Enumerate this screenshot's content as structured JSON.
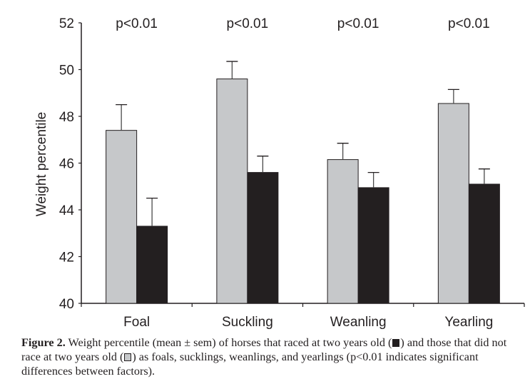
{
  "chart_data": {
    "type": "bar",
    "title": "",
    "xlabel": "",
    "ylabel": "Weight percentile",
    "ylim": [
      40,
      52
    ],
    "yticks": [
      40,
      42,
      44,
      46,
      48,
      50,
      52
    ],
    "categories": [
      "Foal",
      "Suckling",
      "Weanling",
      "Yearling"
    ],
    "series": [
      {
        "name": "Did not race at two years old",
        "color": "#c6c8ca",
        "values": [
          47.4,
          49.6,
          46.15,
          48.55
        ],
        "sem": [
          1.1,
          0.75,
          0.7,
          0.6
        ]
      },
      {
        "name": "Raced at two years old",
        "color": "#231f20",
        "values": [
          43.3,
          45.6,
          44.95,
          45.1
        ],
        "sem": [
          1.2,
          0.7,
          0.65,
          0.65
        ]
      }
    ],
    "annotations": [
      "p<0.01",
      "p<0.01",
      "p<0.01",
      "p<0.01"
    ],
    "grid": false,
    "legend": "none"
  },
  "caption": {
    "label": "Figure 2.",
    "part1": " Weight percentile (mean ± sem) of horses that raced at two years old (",
    "part2": ") and those that did not race at two years old (",
    "part3": ") as foals, sucklings, weanlings, and yearlings (p<0.01 indicates significant differences between factors)."
  }
}
